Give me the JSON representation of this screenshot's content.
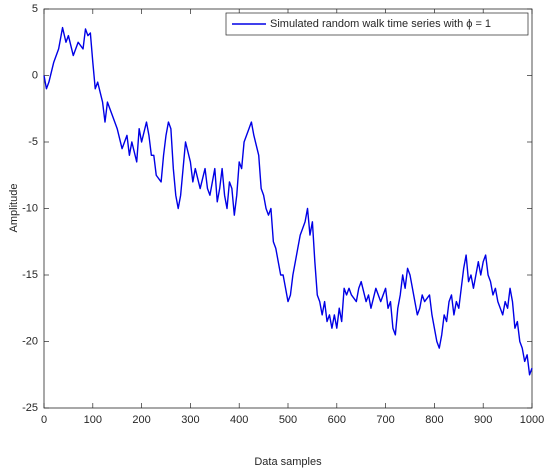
{
  "chart_data": {
    "type": "line",
    "xlabel": "Data samples",
    "ylabel": "Amplitude",
    "x": [
      0,
      5,
      10,
      20,
      30,
      38,
      45,
      50,
      60,
      70,
      80,
      85,
      90,
      95,
      100,
      105,
      110,
      120,
      125,
      130,
      140,
      150,
      160,
      170,
      175,
      180,
      190,
      195,
      200,
      210,
      215,
      220,
      225,
      230,
      240,
      245,
      250,
      255,
      260,
      265,
      270,
      275,
      280,
      285,
      290,
      300,
      305,
      310,
      320,
      330,
      335,
      340,
      350,
      355,
      360,
      365,
      370,
      375,
      380,
      385,
      390,
      395,
      400,
      405,
      410,
      415,
      420,
      425,
      430,
      440,
      445,
      450,
      455,
      460,
      465,
      470,
      475,
      480,
      485,
      490,
      495,
      500,
      505,
      510,
      515,
      520,
      525,
      530,
      535,
      540,
      545,
      550,
      555,
      560,
      565,
      570,
      575,
      580,
      585,
      590,
      595,
      600,
      605,
      610,
      615,
      620,
      625,
      630,
      640,
      645,
      650,
      660,
      665,
      670,
      680,
      690,
      700,
      705,
      710,
      715,
      720,
      725,
      730,
      735,
      740,
      745,
      750,
      755,
      760,
      765,
      770,
      775,
      780,
      790,
      795,
      800,
      805,
      810,
      815,
      820,
      825,
      830,
      835,
      840,
      845,
      850,
      855,
      860,
      865,
      870,
      875,
      880,
      885,
      890,
      895,
      900,
      905,
      910,
      915,
      920,
      925,
      930,
      940,
      945,
      950,
      955,
      960,
      965,
      970,
      975,
      980,
      985,
      990,
      995,
      1000
    ],
    "series": [
      {
        "name": "Simulated random walk time series with ϕ = 1",
        "color": "#0000e6",
        "values": [
          0,
          -1,
          -0.5,
          1,
          2,
          3.6,
          2.5,
          3,
          1.5,
          2.5,
          2,
          3.5,
          3,
          3.2,
          1,
          -1,
          -0.5,
          -2,
          -3.5,
          -2,
          -3,
          -4,
          -5.5,
          -4.5,
          -6,
          -5,
          -6.5,
          -4,
          -5,
          -3.5,
          -4.5,
          -6,
          -6,
          -7.5,
          -8,
          -6,
          -4.5,
          -3.5,
          -4,
          -7,
          -9,
          -10,
          -9,
          -7,
          -5,
          -6.5,
          -8,
          -7,
          -8.5,
          -7,
          -8.5,
          -9,
          -7,
          -9.5,
          -8.5,
          -7,
          -9,
          -10,
          -8,
          -8.5,
          -10.5,
          -9,
          -6.5,
          -7,
          -5,
          -4.5,
          -4,
          -3.5,
          -4.5,
          -6,
          -8.5,
          -9,
          -10,
          -10.5,
          -10,
          -12.5,
          -13,
          -14,
          -15,
          -15,
          -16,
          -17,
          -16.5,
          -15,
          -14,
          -13,
          -12,
          -11.5,
          -11,
          -10,
          -12,
          -11,
          -14,
          -16.5,
          -17,
          -18,
          -17,
          -18.5,
          -18,
          -19,
          -18,
          -19,
          -17.5,
          -18.5,
          -16,
          -16.5,
          -16,
          -16.5,
          -17,
          -16,
          -15.5,
          -17,
          -16.5,
          -17.5,
          -16,
          -17,
          -16,
          -17.5,
          -17,
          -19,
          -19.5,
          -17.5,
          -16.5,
          -15,
          -16,
          -14.5,
          -15,
          -16,
          -17,
          -18,
          -17.5,
          -16.5,
          -17,
          -16.5,
          -18,
          -19,
          -20,
          -20.5,
          -19.5,
          -18,
          -18.5,
          -17,
          -16.5,
          -18,
          -17,
          -17.5,
          -16,
          -14.5,
          -13.5,
          -15.5,
          -15,
          -16,
          -15,
          -14,
          -15,
          -14,
          -13.5,
          -15,
          -15.5,
          -16.5,
          -16,
          -17,
          -18,
          -17,
          -17.5,
          -16,
          -17,
          -19,
          -18.5,
          -20,
          -20.5,
          -21.5,
          -21,
          -22.5,
          -22
        ]
      }
    ],
    "xlim": [
      0,
      1000
    ],
    "xticks": [
      0,
      100,
      200,
      300,
      400,
      500,
      600,
      700,
      800,
      900,
      1000
    ],
    "ylim": [
      -25,
      5
    ],
    "yticks": [
      -25,
      -20,
      -15,
      -10,
      -5,
      0,
      5
    ],
    "legend": "northeast"
  }
}
